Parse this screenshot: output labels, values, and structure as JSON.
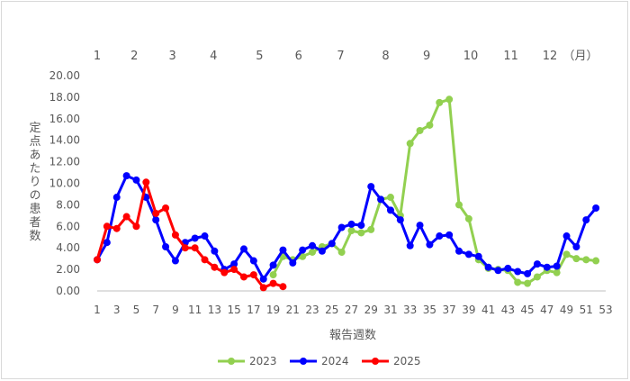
{
  "chart_data": {
    "type": "line",
    "ylabel": "定点あたりの患者数",
    "xlabel": "報告週数",
    "x_ticks": [
      "1",
      "3",
      "5",
      "7",
      "9",
      "11",
      "13",
      "15",
      "17",
      "19",
      "21",
      "23",
      "25",
      "27",
      "29",
      "31",
      "33",
      "35",
      "37",
      "39",
      "41",
      "43",
      "45",
      "47",
      "49",
      "51",
      "53"
    ],
    "y_ticks": [
      "20.00",
      "18.00",
      "16.00",
      "14.00",
      "12.00",
      "10.00",
      "8.00",
      "6.00",
      "4.00",
      "2.00",
      "0.00"
    ],
    "ylim": [
      0,
      20
    ],
    "xlim": [
      1,
      53
    ],
    "month_labels": [
      {
        "label": "1",
        "week": 1
      },
      {
        "label": "2",
        "week": 4.8
      },
      {
        "label": "3",
        "week": 8.7
      },
      {
        "label": "4",
        "week": 12.9
      },
      {
        "label": "5",
        "week": 17.6
      },
      {
        "label": "6",
        "week": 21.6
      },
      {
        "label": "7",
        "week": 25.9
      },
      {
        "label": "8",
        "week": 30.5
      },
      {
        "label": "9",
        "week": 34.7
      },
      {
        "label": "10",
        "week": 39.2
      },
      {
        "label": "11",
        "week": 43.3
      },
      {
        "label": "12",
        "week": 47.3
      }
    ],
    "month_unit": "（月）",
    "series": [
      {
        "name": "2023",
        "color": "#92d050",
        "x": [
          19,
          20,
          21,
          22,
          23,
          24,
          25,
          26,
          27,
          28,
          29,
          30,
          31,
          32,
          33,
          34,
          35,
          36,
          37,
          38,
          39,
          40,
          41,
          42,
          43,
          44,
          45,
          46,
          47,
          48,
          49,
          50,
          51,
          52
        ],
        "values": [
          1.5,
          3.2,
          2.9,
          3.2,
          3.6,
          4.1,
          4.4,
          3.6,
          5.6,
          5.4,
          5.7,
          8.5,
          8.7,
          7.0,
          13.7,
          14.9,
          15.4,
          17.5,
          17.8,
          8.0,
          6.7,
          2.9,
          2.1,
          2.0,
          1.9,
          0.8,
          0.7,
          1.3,
          1.9,
          1.7,
          3.4,
          3.0,
          2.9,
          2.8
        ]
      },
      {
        "name": "2024",
        "color": "#0000ff",
        "x": [
          1,
          2,
          3,
          4,
          5,
          6,
          7,
          8,
          9,
          10,
          11,
          12,
          13,
          14,
          15,
          16,
          17,
          18,
          19,
          20,
          21,
          22,
          23,
          24,
          25,
          26,
          27,
          28,
          29,
          30,
          31,
          32,
          33,
          34,
          35,
          36,
          37,
          38,
          39,
          40,
          41,
          42,
          43,
          44,
          45,
          46,
          47,
          48,
          49,
          50,
          51,
          52
        ],
        "values": [
          2.9,
          4.5,
          8.7,
          10.7,
          10.3,
          8.7,
          6.6,
          4.1,
          2.8,
          4.5,
          4.9,
          5.1,
          3.7,
          2.0,
          2.5,
          3.9,
          2.8,
          1.1,
          2.4,
          3.8,
          2.6,
          3.8,
          4.2,
          3.7,
          4.4,
          5.9,
          6.2,
          6.1,
          9.7,
          8.5,
          7.5,
          6.6,
          4.2,
          6.1,
          4.3,
          5.1,
          5.2,
          3.7,
          3.4,
          3.2,
          2.2,
          1.9,
          2.1,
          1.8,
          1.6,
          2.5,
          2.2,
          2.3,
          5.1,
          4.1,
          6.6,
          7.7
        ]
      },
      {
        "name": "2025",
        "color": "#ff0000",
        "x": [
          1,
          2,
          3,
          4,
          5,
          6,
          7,
          8,
          9,
          10,
          11,
          12,
          13,
          14,
          15,
          16,
          17,
          18,
          19,
          20
        ],
        "values": [
          2.9,
          6.0,
          5.8,
          6.9,
          6.0,
          10.1,
          7.2,
          7.7,
          5.2,
          4.0,
          4.0,
          2.9,
          2.2,
          1.7,
          2.0,
          1.3,
          1.5,
          0.3,
          0.7,
          0.4
        ]
      }
    ]
  }
}
